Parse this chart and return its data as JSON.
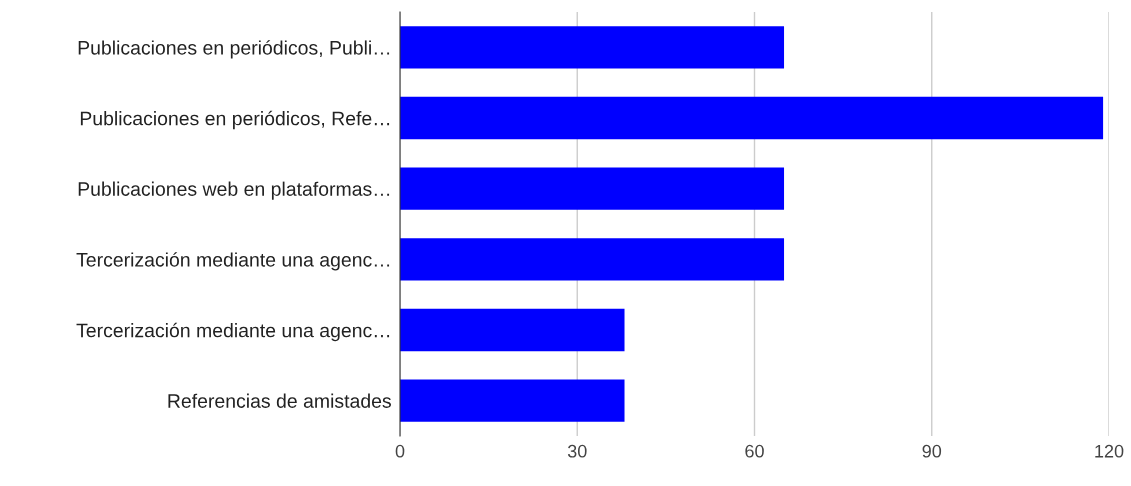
{
  "chart_data": {
    "type": "bar",
    "orientation": "horizontal",
    "categories": [
      "Publicaciones en periódicos, Publi…",
      "Publicaciones en periódicos, Refe…",
      "Publicaciones web en plataformas…",
      "Tercerización mediante una agenc…",
      "Tercerización mediante una agenc…",
      "Referencias de amistades"
    ],
    "values": [
      65,
      119,
      65,
      65,
      38,
      38
    ],
    "color": "#0000ff",
    "xlim": [
      0,
      120
    ],
    "xticks": [
      0,
      30,
      60,
      90,
      120
    ],
    "grid": "x",
    "legend": false
  }
}
